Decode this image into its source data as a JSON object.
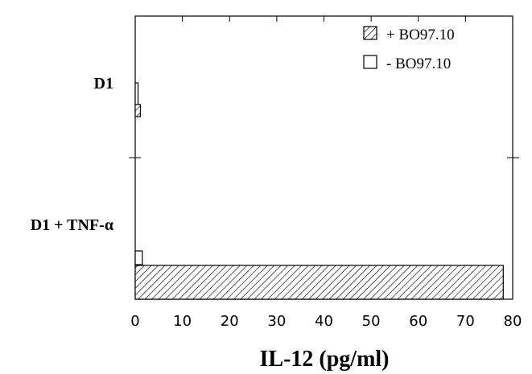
{
  "chart_data": {
    "type": "bar",
    "orientation": "horizontal",
    "categories": [
      "D1",
      "D1 + TNF-α"
    ],
    "series": [
      {
        "name": "+ BO97.10",
        "pattern": "hatched",
        "values": [
          1.1,
          78
        ]
      },
      {
        "name": "- BO97.10",
        "pattern": "open",
        "values": [
          0.6,
          1.5
        ]
      }
    ],
    "xlabel": "IL-12 (pg/ml)",
    "ylabel": "",
    "xlim": [
      0,
      80
    ],
    "xticks": [
      0,
      10,
      20,
      30,
      40,
      50,
      60,
      70,
      80
    ],
    "grid": false,
    "legend_position": "top-right"
  }
}
